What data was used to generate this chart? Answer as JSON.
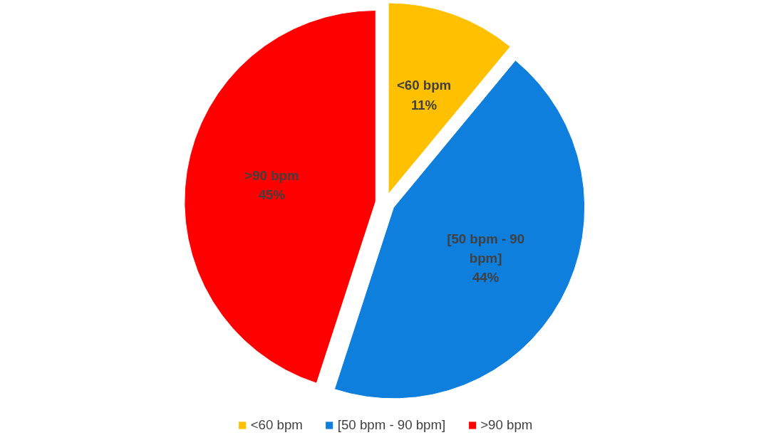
{
  "chart_data": {
    "type": "pie",
    "categories": [
      "<60 bpm",
      "[50 bpm - 90 bpm]",
      ">90 bpm"
    ],
    "values": [
      11,
      44,
      45
    ],
    "colors": [
      "#ffc000",
      "#0f7fde",
      "#ff0000"
    ],
    "value_labels": [
      "11%",
      "44%",
      "45%"
    ],
    "legend": "bottom"
  }
}
